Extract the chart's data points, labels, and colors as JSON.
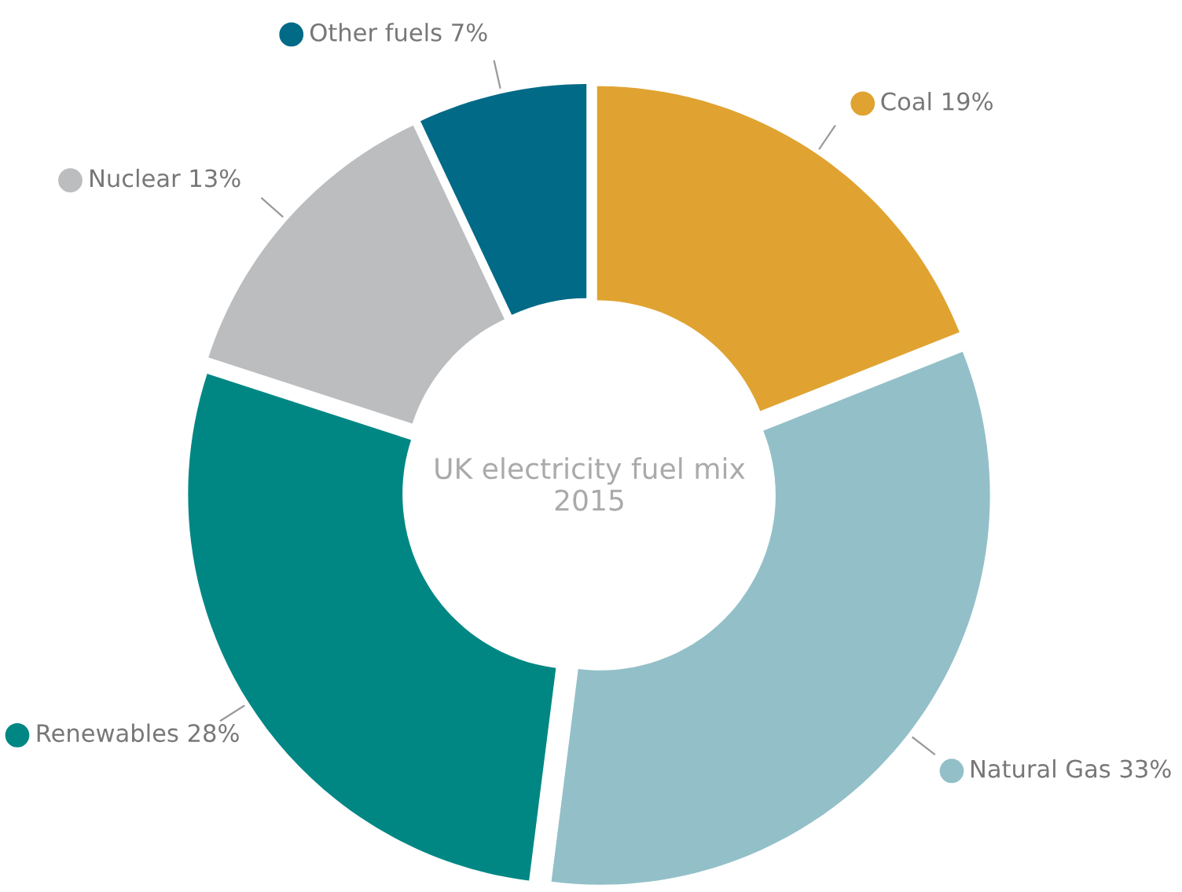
{
  "chart_data": {
    "type": "donut",
    "title": "UK electricity fuel mix\n2015",
    "categories": [
      "Coal",
      "Natural Gas",
      "Renewables",
      "Nuclear",
      "Other fuels"
    ],
    "values": [
      19,
      33,
      28,
      13,
      7
    ],
    "value_labels": [
      "19%",
      "33%",
      "28%",
      "13%",
      "7%"
    ],
    "colors": [
      "#e0a331",
      "#93c0c8",
      "#008784",
      "#bcbdbf",
      "#006a87"
    ],
    "legend": "top right"
  }
}
